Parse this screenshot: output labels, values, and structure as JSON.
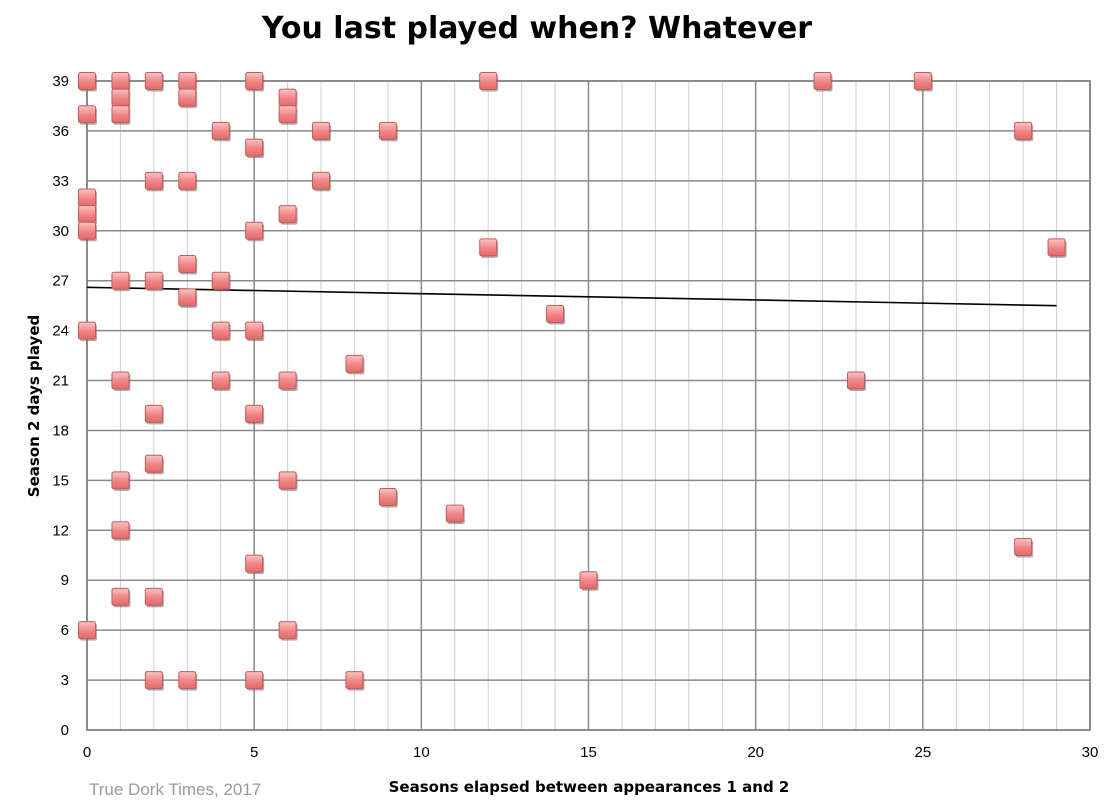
{
  "chart_data": {
    "type": "scatter",
    "title": "You last played when? Whatever",
    "xlabel": "Seasons elapsed between appearances 1 and 2",
    "ylabel": "Season 2 days played",
    "credit": "True Dork Times, 2017",
    "xlim": [
      0,
      30
    ],
    "ylim": [
      0,
      39
    ],
    "xticks": [
      0,
      5,
      10,
      15,
      20,
      25,
      30
    ],
    "yticks": [
      0,
      3,
      6,
      9,
      12,
      15,
      18,
      21,
      24,
      27,
      30,
      33,
      36,
      39
    ],
    "grid": true,
    "marker_color": "#f08484",
    "trendline": {
      "x": [
        0,
        29
      ],
      "y": [
        26.6,
        25.5
      ],
      "color": "#000000"
    },
    "points": [
      {
        "x": 0,
        "y": 39
      },
      {
        "x": 1,
        "y": 39
      },
      {
        "x": 2,
        "y": 39
      },
      {
        "x": 3,
        "y": 39
      },
      {
        "x": 5,
        "y": 39
      },
      {
        "x": 12,
        "y": 39
      },
      {
        "x": 22,
        "y": 39
      },
      {
        "x": 25,
        "y": 39
      },
      {
        "x": 1,
        "y": 38
      },
      {
        "x": 3,
        "y": 38
      },
      {
        "x": 6,
        "y": 38
      },
      {
        "x": 0,
        "y": 37
      },
      {
        "x": 1,
        "y": 37
      },
      {
        "x": 6,
        "y": 37
      },
      {
        "x": 4,
        "y": 36
      },
      {
        "x": 7,
        "y": 36
      },
      {
        "x": 9,
        "y": 36
      },
      {
        "x": 28,
        "y": 36
      },
      {
        "x": 5,
        "y": 35
      },
      {
        "x": 2,
        "y": 33
      },
      {
        "x": 3,
        "y": 33
      },
      {
        "x": 7,
        "y": 33
      },
      {
        "x": 0,
        "y": 32
      },
      {
        "x": 0,
        "y": 31
      },
      {
        "x": 6,
        "y": 31
      },
      {
        "x": 0,
        "y": 30
      },
      {
        "x": 5,
        "y": 30
      },
      {
        "x": 12,
        "y": 29
      },
      {
        "x": 29,
        "y": 29
      },
      {
        "x": 3,
        "y": 28
      },
      {
        "x": 1,
        "y": 27
      },
      {
        "x": 2,
        "y": 27
      },
      {
        "x": 4,
        "y": 27
      },
      {
        "x": 3,
        "y": 26
      },
      {
        "x": 14,
        "y": 25
      },
      {
        "x": 0,
        "y": 24
      },
      {
        "x": 4,
        "y": 24
      },
      {
        "x": 5,
        "y": 24
      },
      {
        "x": 8,
        "y": 22
      },
      {
        "x": 1,
        "y": 21
      },
      {
        "x": 4,
        "y": 21
      },
      {
        "x": 6,
        "y": 21
      },
      {
        "x": 23,
        "y": 21
      },
      {
        "x": 2,
        "y": 19
      },
      {
        "x": 5,
        "y": 19
      },
      {
        "x": 2,
        "y": 16
      },
      {
        "x": 1,
        "y": 15
      },
      {
        "x": 6,
        "y": 15
      },
      {
        "x": 9,
        "y": 14
      },
      {
        "x": 11,
        "y": 13
      },
      {
        "x": 1,
        "y": 12
      },
      {
        "x": 28,
        "y": 11
      },
      {
        "x": 5,
        "y": 10
      },
      {
        "x": 15,
        "y": 9
      },
      {
        "x": 1,
        "y": 8
      },
      {
        "x": 2,
        "y": 8
      },
      {
        "x": 0,
        "y": 6
      },
      {
        "x": 6,
        "y": 6
      },
      {
        "x": 2,
        "y": 3
      },
      {
        "x": 3,
        "y": 3
      },
      {
        "x": 5,
        "y": 3
      },
      {
        "x": 8,
        "y": 3
      }
    ]
  }
}
